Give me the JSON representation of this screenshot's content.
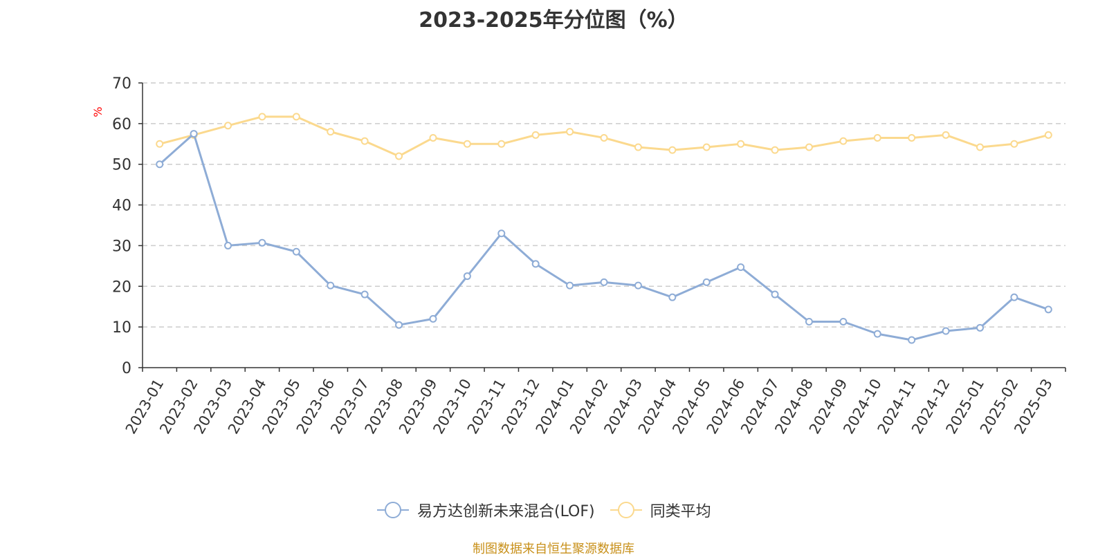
{
  "chart_data": {
    "type": "line",
    "title": "2023-2025年分位图（%）",
    "ylabel": "%",
    "ylim": [
      0,
      70
    ],
    "yticks": [
      0,
      10,
      20,
      30,
      40,
      50,
      60,
      70
    ],
    "grid": true,
    "legend_position": "bottom-center",
    "categories": [
      "2023-01",
      "2023-02",
      "2023-03",
      "2023-04",
      "2023-05",
      "2023-06",
      "2023-07",
      "2023-08",
      "2023-09",
      "2023-10",
      "2023-11",
      "2023-12",
      "2024-01",
      "2024-02",
      "2024-03",
      "2024-04",
      "2024-05",
      "2024-06",
      "2024-07",
      "2024-08",
      "2024-09",
      "2024-10",
      "2024-11",
      "2024-12",
      "2025-01",
      "2025-02",
      "2025-03"
    ],
    "series": [
      {
        "name": "易方达创新未来混合(LOF)",
        "color": "#8eacd6",
        "values": [
          50,
          57.5,
          30,
          30.7,
          28.5,
          20.2,
          18,
          10.5,
          12,
          22.5,
          33,
          25.5,
          20.2,
          21,
          20.2,
          17.3,
          21,
          24.7,
          18,
          11.3,
          11.3,
          8.3,
          6.8,
          9,
          9.8,
          17.3,
          14.3
        ]
      },
      {
        "name": "同类平均",
        "color": "#fbd98e",
        "values": [
          55,
          57.2,
          59.5,
          61.7,
          61.7,
          58,
          55.7,
          52,
          56.5,
          55,
          55,
          57.2,
          58,
          56.5,
          54.2,
          53.5,
          54.2,
          55,
          53.5,
          54.2,
          55.7,
          56.5,
          56.5,
          57.2,
          54.2,
          55,
          57.2
        ]
      }
    ],
    "source": "制图数据来自恒生聚源数据库"
  }
}
